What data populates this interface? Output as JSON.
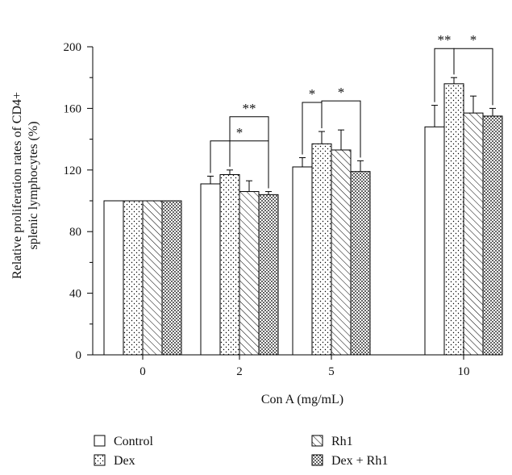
{
  "chart_data": {
    "type": "bar",
    "categories": [
      "0",
      "2",
      "5",
      "10"
    ],
    "series": [
      {
        "name": "Control",
        "pattern": "none",
        "values": [
          100,
          111,
          122,
          148
        ],
        "errors": [
          0,
          5,
          6,
          14
        ]
      },
      {
        "name": "Dex",
        "pattern": "dots",
        "values": [
          100,
          117,
          137,
          176
        ],
        "errors": [
          0,
          3,
          8,
          4
        ]
      },
      {
        "name": "Rh1",
        "pattern": "hatch",
        "values": [
          100,
          106,
          133,
          157
        ],
        "errors": [
          0,
          7,
          13,
          11
        ]
      },
      {
        "name": "Dex + Rh1",
        "pattern": "crosshatch",
        "values": [
          100,
          104,
          119,
          155
        ],
        "errors": [
          0,
          2,
          7,
          5
        ]
      }
    ],
    "xlabel": "Con A (mg/mL)",
    "ylabel_lines": [
      "Relative proliferation rates of CD4+",
      "splenic lymphocytes (%)"
    ],
    "ylim": [
      0,
      200
    ],
    "yticks": [
      0,
      40,
      80,
      120,
      160,
      200
    ],
    "grid": false,
    "legend_position": "bottom",
    "significance": [
      {
        "category": "2",
        "from": "Control",
        "to": "Dex + Rh1",
        "label": "*",
        "level": 0
      },
      {
        "category": "2",
        "from": "Dex",
        "to": "Dex + Rh1",
        "label": "**",
        "level": 1
      },
      {
        "category": "5",
        "from": "Control",
        "to": "Dex",
        "label": "*",
        "level": 0
      },
      {
        "category": "5",
        "from": "Dex",
        "to": "Dex + Rh1",
        "label": "*",
        "level": 0
      },
      {
        "category": "10",
        "from": "Control",
        "to": "Dex",
        "label": "**",
        "level": 0
      },
      {
        "category": "10",
        "from": "Dex",
        "to": "Dex + Rh1",
        "label": "*",
        "level": 0
      }
    ],
    "colors": {
      "stroke": "#000000",
      "fill": "#ffffff",
      "crosshatch_fill": "#555555"
    }
  }
}
